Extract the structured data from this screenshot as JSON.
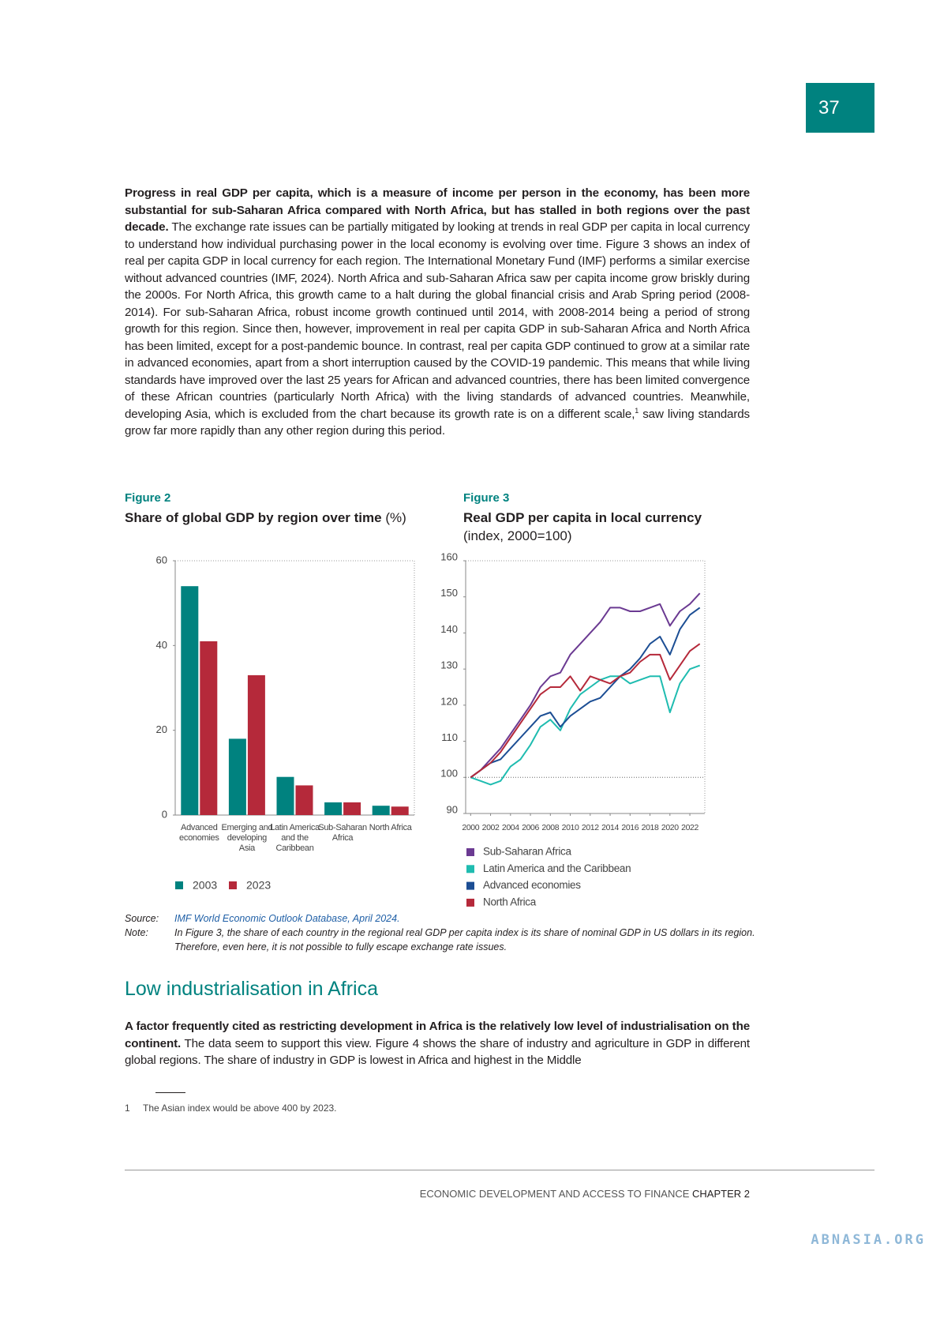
{
  "page_number": "37",
  "paragraph1": {
    "bold": "Progress in real GDP per capita, which is a measure of income per person in the economy, has been more substantial for sub-Saharan Africa compared with North Africa, but has stalled in both regions over the past decade.",
    "text": " The exchange rate issues can be partially mitigated by looking at trends in real GDP per capita in local currency to understand how individual purchasing power in the local economy is evolving over time. Figure 3 shows an index of real per capita GDP in local currency for each region. The International Monetary Fund (IMF) performs a similar exercise without advanced countries (IMF, 2024). North Africa and sub-Saharan Africa saw per capita income grow briskly during the 2000s. For North Africa, this growth came to a halt during the global financial crisis and Arab Spring period (2008-2014). For sub-Saharan Africa, robust income growth continued until 2014, with 2008-2014 being a period of strong growth for this region. Since then, however, improvement in real per capita GDP in sub-Saharan Africa and North Africa has been limited, except for a post-pandemic bounce. In contrast, real per capita GDP continued to grow at a similar rate in advanced economies, apart from a short interruption caused by the COVID-19 pandemic. This means that while living standards have improved over the last 25 years for African and advanced countries, there has been limited convergence of these African countries (particularly North Africa) with the living standards of advanced countries. Meanwhile, developing Asia, which is excluded from the chart because its growth rate is on a different scale,",
    "note_ref": "1",
    "text_after": " saw living standards grow far more rapidly than any other region during this period."
  },
  "chart_data": [
    {
      "type": "bar",
      "figure_label": "Figure 2",
      "title": "Share of global GDP by region over time",
      "unit": "(%)",
      "categories": [
        "Advanced economies",
        "Emerging and developing Asia",
        "Latin America and the Caribbean",
        "Sub-Saharan Africa",
        "North Africa"
      ],
      "series": [
        {
          "name": "2003",
          "color": "#00827f",
          "values": [
            54,
            18,
            9,
            3,
            2.2
          ]
        },
        {
          "name": "2023",
          "color": "#b5293a",
          "values": [
            41,
            33,
            7,
            3,
            2
          ]
        }
      ],
      "ylim": [
        0,
        60
      ],
      "yticks": [
        0,
        20,
        40,
        60
      ]
    },
    {
      "type": "line",
      "figure_label": "Figure 3",
      "title": "Real GDP per capita in local currency",
      "unit": "(index, 2000=100)",
      "x": [
        2000,
        2001,
        2002,
        2003,
        2004,
        2005,
        2006,
        2007,
        2008,
        2009,
        2010,
        2011,
        2012,
        2013,
        2014,
        2015,
        2016,
        2017,
        2018,
        2019,
        2020,
        2021,
        2022,
        2023
      ],
      "series": [
        {
          "name": "Sub-Saharan Africa",
          "color": "#6b3a92",
          "values": [
            100,
            102,
            105,
            108,
            112,
            116,
            120,
            125,
            128,
            129,
            134,
            137,
            140,
            143,
            147,
            147,
            146,
            146,
            147,
            148,
            142,
            146,
            148,
            151
          ]
        },
        {
          "name": "Latin America and the Caribbean",
          "color": "#1fbcb0",
          "values": [
            100,
            99,
            98,
            99,
            103,
            105,
            109,
            114,
            116,
            113,
            119,
            123,
            125,
            127,
            128,
            128,
            126,
            127,
            128,
            128,
            118,
            126,
            130,
            131
          ]
        },
        {
          "name": "Advanced economies",
          "color": "#1c4e94",
          "values": [
            100,
            102,
            104,
            105,
            108,
            111,
            114,
            117,
            118,
            114,
            117,
            119,
            121,
            122,
            125,
            128,
            130,
            133,
            137,
            139,
            134,
            141,
            145,
            147
          ]
        },
        {
          "name": "North Africa",
          "color": "#b5293a",
          "values": [
            100,
            102,
            104,
            107,
            111,
            115,
            119,
            123,
            125,
            125,
            128,
            124,
            128,
            127,
            126,
            128,
            129,
            132,
            134,
            134,
            127,
            131,
            135,
            137
          ]
        }
      ],
      "reference_line": 100,
      "xlim": [
        1999.5,
        2023.5
      ],
      "xticks": [
        2000,
        2002,
        2004,
        2006,
        2008,
        2010,
        2012,
        2014,
        2016,
        2018,
        2020,
        2022
      ],
      "ylim": [
        90,
        160
      ],
      "yticks": [
        90,
        100,
        110,
        120,
        130,
        140,
        150,
        160
      ]
    }
  ],
  "source": {
    "label": "Source:",
    "text": "IMF World Economic Outlook Database, April 2024."
  },
  "note": {
    "label": "Note:",
    "text": "In Figure 3, the share of each country in the regional real GDP per capita index is its share of nominal GDP in US dollars in its region. Therefore, even here, it is not possible to fully escape exchange rate issues."
  },
  "section_title": "Low industrialisation in Africa",
  "paragraph2": {
    "bold": "A factor frequently cited as restricting development in Africa is the relatively low level of industrialisation on the continent.",
    "text": " The data seem to support this view. Figure 4 shows the share of industry and agriculture in GDP in different global regions. The share of industry in GDP is lowest in Africa and highest in the Middle"
  },
  "footnote": {
    "number": "1",
    "text": "The Asian index would be above 400 by 2023."
  },
  "footer": {
    "text": "ECONOMIC DEVELOPMENT AND ACCESS TO FINANCE",
    "chapter": "CHAPTER 2"
  },
  "watermark": "ABNASIA.ORG"
}
